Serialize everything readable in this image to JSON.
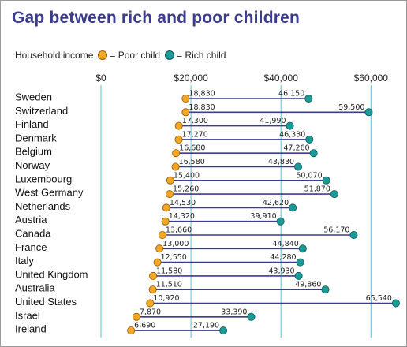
{
  "title": "Gap between rich and poor children",
  "legend": {
    "heading": "Household income",
    "poor_label": "= Poor child",
    "rich_label": "= Rich child"
  },
  "colors": {
    "title": "#3b3b8f",
    "line": "#3b3b8f",
    "poor": "#f5a623",
    "rich": "#1a9b98",
    "grid": "#5bc0de"
  },
  "chart_data": {
    "type": "dumbbell",
    "title": "Gap between rich and poor children",
    "xlim": [
      0,
      65540
    ],
    "xticks": [
      {
        "value": 0,
        "label": "$0"
      },
      {
        "value": 20000,
        "label": "$20,000"
      },
      {
        "value": 40000,
        "label": "$40,000"
      },
      {
        "value": 60000,
        "label": "$60,000"
      }
    ],
    "categories": [
      "Sweden",
      "Switzerland",
      "Finland",
      "Denmark",
      "Belgium",
      "Norway",
      "Luxembourg",
      "West Germany",
      "Netherlands",
      "Austria",
      "Canada",
      "France",
      "Italy",
      "United Kingdom",
      "Australia",
      "United States",
      "Israel",
      "Ireland"
    ],
    "series": [
      {
        "name": "Poor child",
        "values": [
          18830,
          18830,
          17300,
          17270,
          16680,
          16580,
          15400,
          15260,
          14530,
          14320,
          13660,
          13000,
          12550,
          11580,
          11510,
          10920,
          7870,
          6690
        ]
      },
      {
        "name": "Rich child",
        "values": [
          46150,
          59500,
          41990,
          46330,
          47260,
          43830,
          50070,
          51870,
          42620,
          39910,
          56170,
          44840,
          44280,
          43930,
          49860,
          65540,
          33390,
          27190
        ]
      }
    ],
    "poor_labels": [
      "18,830",
      "18,830",
      "17,300",
      "17,270",
      "16,680",
      "16,580",
      "15,400",
      "15,260",
      "14,530",
      "14,320",
      "13,660",
      "13,000",
      "12,550",
      "11,580",
      "11,510",
      "10,920",
      "7,870",
      "6,690"
    ],
    "rich_labels": [
      "46,150",
      "59,500",
      "41,990",
      "46,330",
      "47,260",
      "43,830",
      "50,070",
      "51,870",
      "42,620",
      "39,910",
      "56,170",
      "44,840",
      "44,280",
      "43,930",
      "49,860",
      "65,540",
      "33,390",
      "27,190"
    ]
  }
}
